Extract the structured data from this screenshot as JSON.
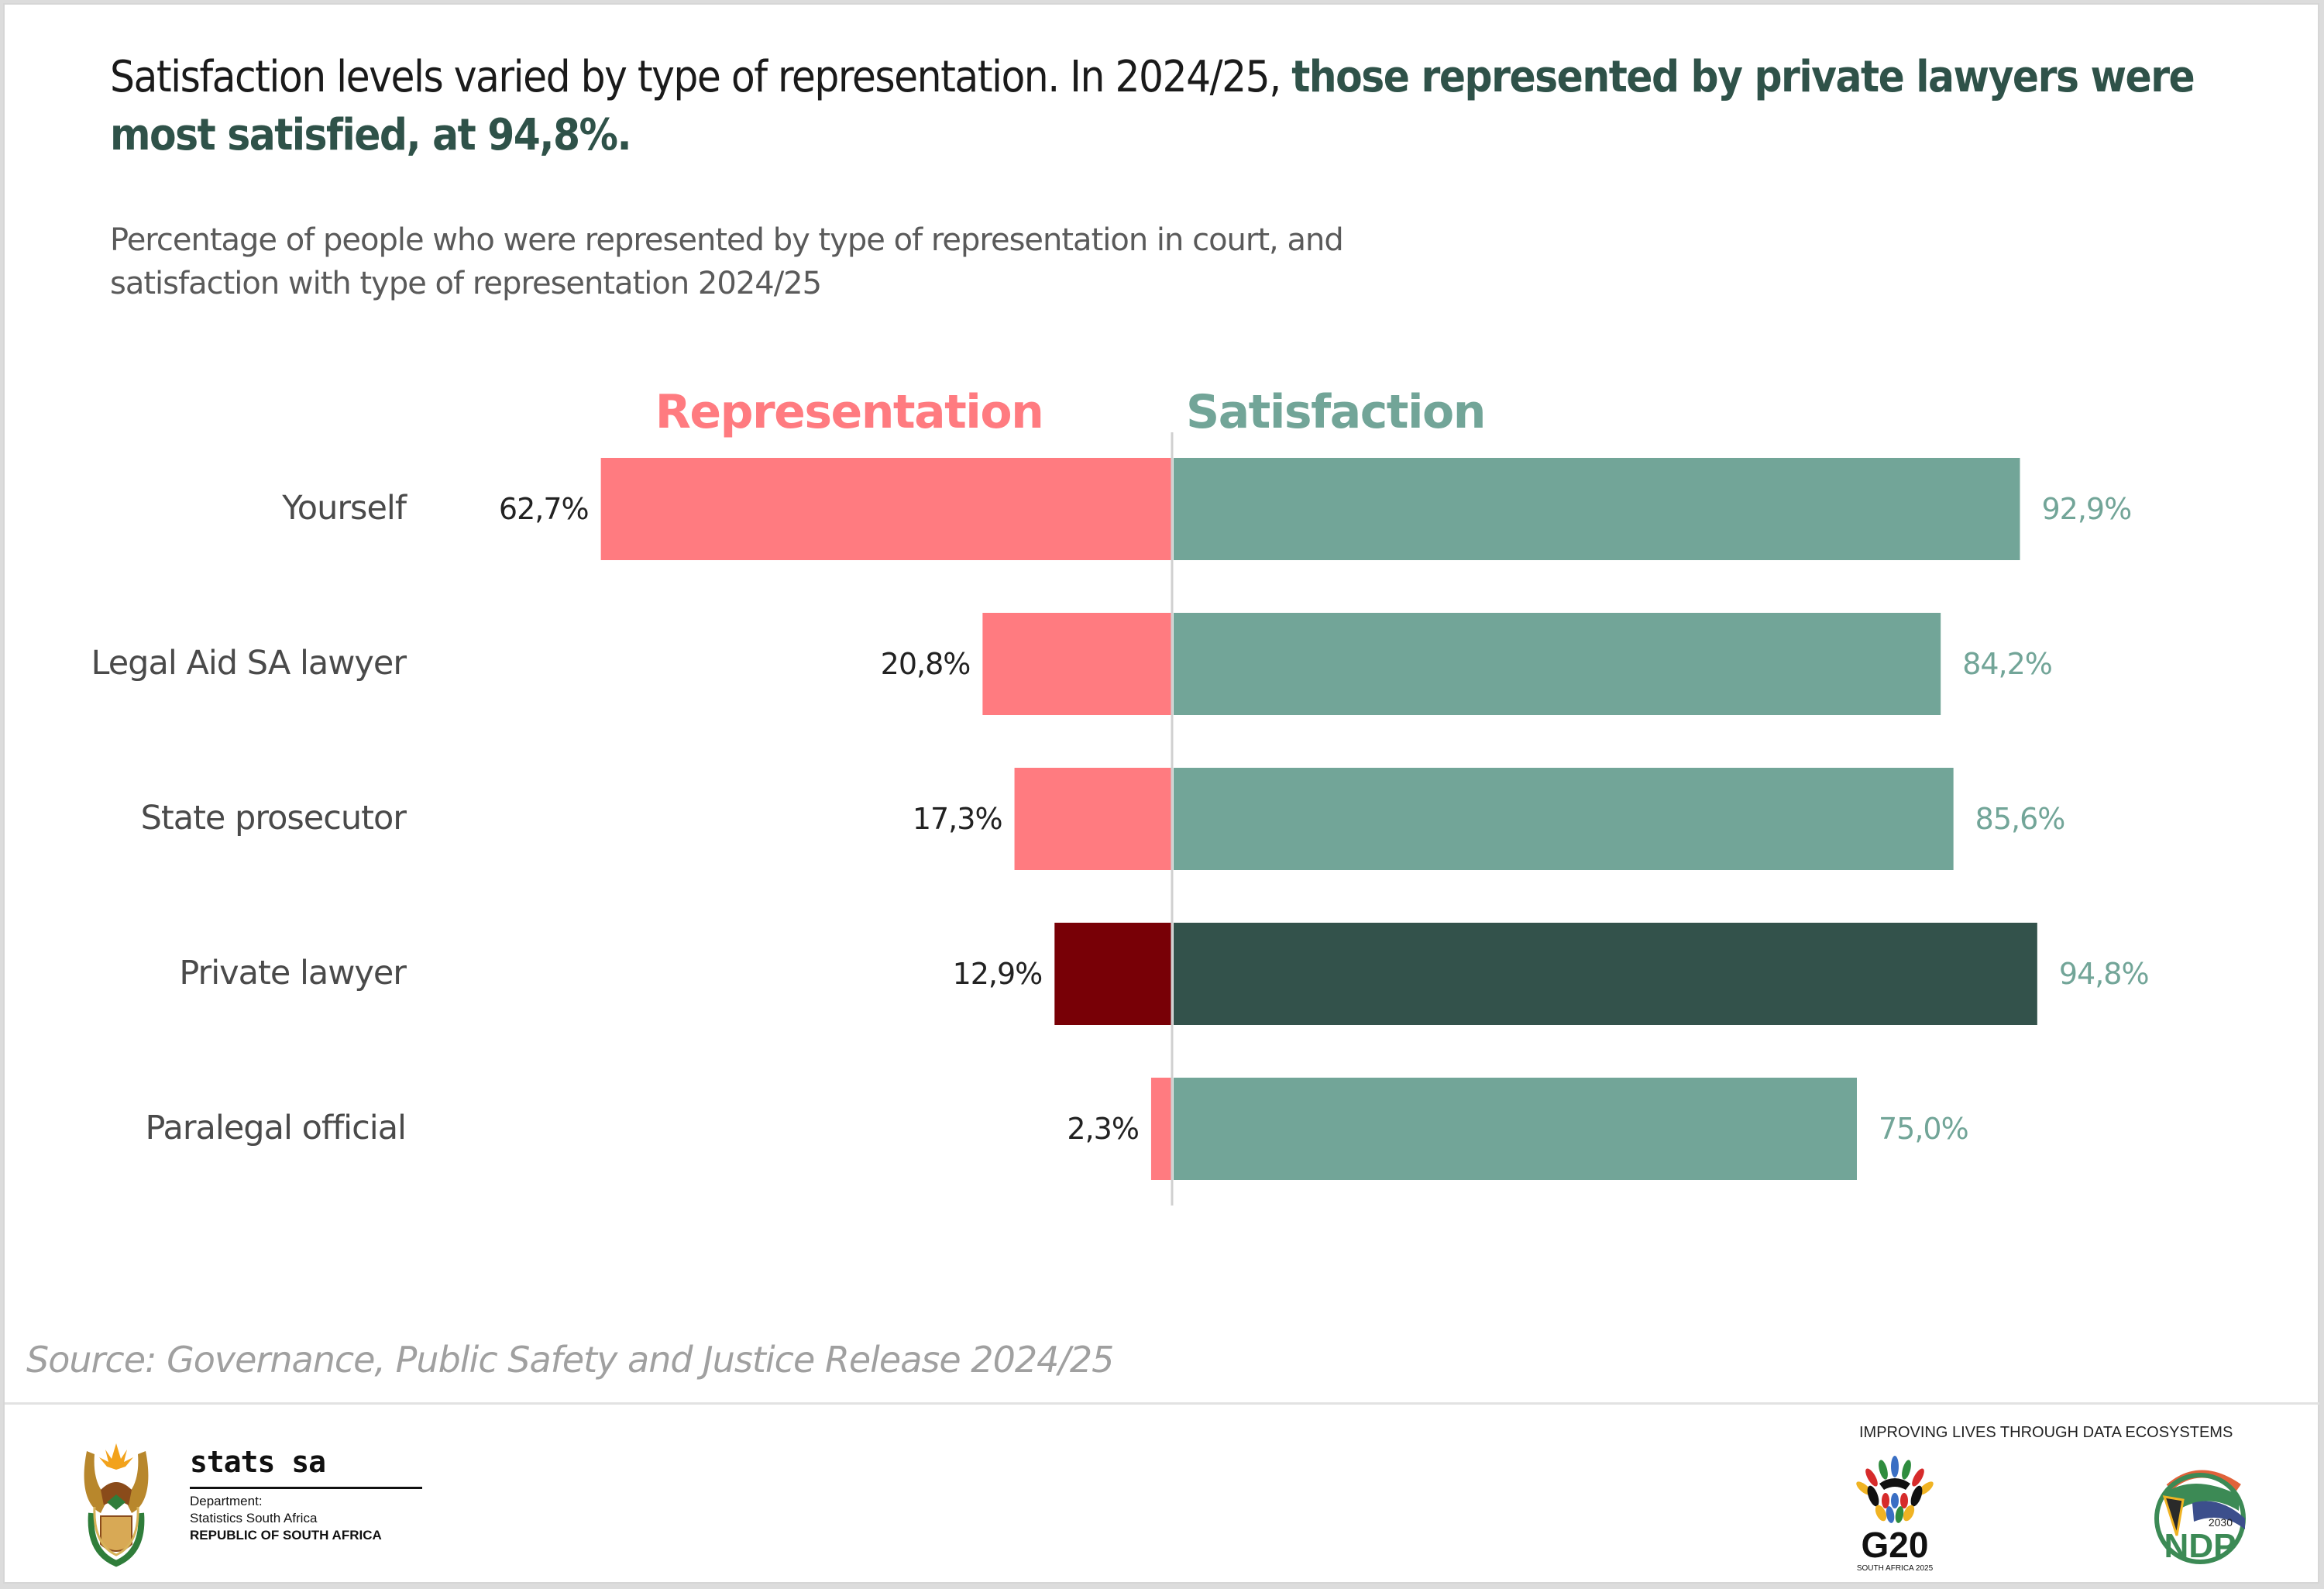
{
  "headline": {
    "plain": "Satisfaction levels varied by type of representation. In 2024/25, ",
    "highlight": "those represented by private lawyers were most satisfied, at 94,8%."
  },
  "subtitle": "Percentage of people who were represented by type of representation in court, and satisfaction with type of representation 2024/25",
  "colors": {
    "representation": "#ff7b80",
    "representation_highlight": "#780006",
    "satisfaction": "#72a598",
    "satisfaction_highlight": "#33524b",
    "axis": "#d0d0d0",
    "headline_highlight": "#2f5249"
  },
  "chart_data": {
    "type": "bar",
    "orientation": "horizontal-diverging",
    "title": "Percentage of people who were represented by type of representation in court, and satisfaction with type of representation 2024/25",
    "categories": [
      "Yourself",
      "Legal Aid SA lawyer",
      "State prosecutor",
      "Private lawyer",
      "Paralegal official"
    ],
    "series": [
      {
        "name": "Representation",
        "direction": "left",
        "values": [
          62.7,
          20.8,
          17.3,
          12.9,
          2.3
        ],
        "labels": [
          "62,7%",
          "20,8%",
          "17,3%",
          "12,9%",
          "2,3%"
        ]
      },
      {
        "name": "Satisfaction",
        "direction": "right",
        "values": [
          92.9,
          84.2,
          85.6,
          94.8,
          75.0
        ],
        "labels": [
          "92,9%",
          "84,2%",
          "85,6%",
          "94,8%",
          "75,0%"
        ]
      }
    ],
    "highlighted_category": "Private lawyer",
    "xlabel": "",
    "ylabel": "",
    "units": "%",
    "grid": false,
    "legend": "series titles above bars"
  },
  "source": "Source: Governance, Public Safety and Justice Release 2024/25",
  "footer": {
    "org_short": "stats sa",
    "dept_line1": "Department:",
    "dept_line2": "Statistics South Africa",
    "dept_line3": "REPUBLIC OF SOUTH AFRICA",
    "tagline": "IMPROVING LIVES THROUGH DATA ECOSYSTEMS",
    "g20_text": "G20",
    "g20_sub": "SOUTH AFRICA 2025",
    "ndp_text": "NDP",
    "ndp_year": "2030"
  }
}
